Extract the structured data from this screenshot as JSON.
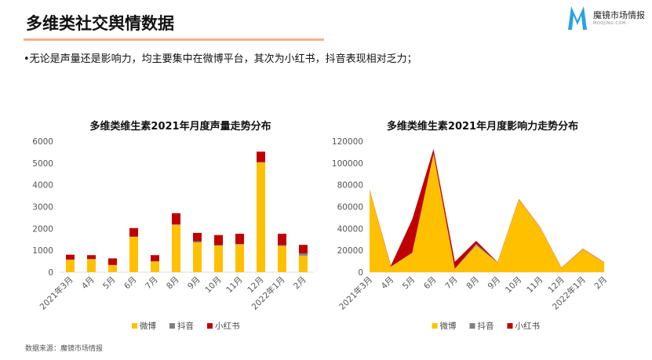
{
  "header": {
    "title": "多维类社交舆情数据",
    "bullet": "•无论是声量还是影响力，均主要集中在微博平台，其次为小红书，抖音表现相对乏力；"
  },
  "logo": {
    "name": "魔镜市场情报",
    "url_text": "MOOJING.COM"
  },
  "source": "数据来源：魔镜市场情报",
  "colors": {
    "weibo": "#ffc000",
    "douyin": "#7f7f7f",
    "xiaohongshu": "#c00000",
    "accent_rule": "#f4b183"
  },
  "chart_data": [
    {
      "type": "bar",
      "stacked": true,
      "title": "多维类维生素2021年月度声量走势分布",
      "categories": [
        "2021年3月",
        "4月",
        "5月",
        "6月",
        "7月",
        "8月",
        "9月",
        "10月",
        "11月",
        "12月",
        "2022年1月",
        "2月"
      ],
      "ylim": [
        0,
        6000
      ],
      "yticks": [
        0,
        1000,
        2000,
        3000,
        4000,
        5000,
        6000
      ],
      "legend": "bottom",
      "series": [
        {
          "name": "微博",
          "values": [
            560,
            590,
            320,
            1610,
            490,
            2170,
            1360,
            1220,
            1270,
            5020,
            1200,
            760
          ]
        },
        {
          "name": "抖音",
          "values": [
            20,
            20,
            10,
            20,
            10,
            20,
            60,
            20,
            20,
            20,
            40,
            100
          ]
        },
        {
          "name": "小红书",
          "values": [
            220,
            170,
            300,
            390,
            280,
            510,
            380,
            460,
            470,
            480,
            520,
            390
          ]
        }
      ]
    },
    {
      "type": "area",
      "stacked": true,
      "title": "多维类维生素2021年月度影响力走势分布",
      "categories": [
        "2021年3月",
        "4月",
        "5月",
        "6月",
        "7月",
        "8月",
        "9月",
        "10月",
        "11月",
        "12月",
        "2022年1月",
        "2月"
      ],
      "ylim": [
        0,
        120000
      ],
      "yticks": [
        0,
        20000,
        40000,
        60000,
        80000,
        100000,
        120000
      ],
      "legend": "bottom",
      "series": [
        {
          "name": "微博",
          "values": [
            75500,
            5000,
            17700,
            108000,
            3000,
            24400,
            8800,
            66500,
            40800,
            3800,
            21000,
            8800
          ]
        },
        {
          "name": "抖音",
          "values": [
            100,
            100,
            100,
            500,
            100,
            1600,
            100,
            100,
            100,
            100,
            300,
            200
          ]
        },
        {
          "name": "小红书",
          "values": [
            400,
            900,
            30500,
            4300,
            6400,
            2700,
            300,
            400,
            300,
            200,
            300,
            200
          ]
        }
      ]
    }
  ]
}
